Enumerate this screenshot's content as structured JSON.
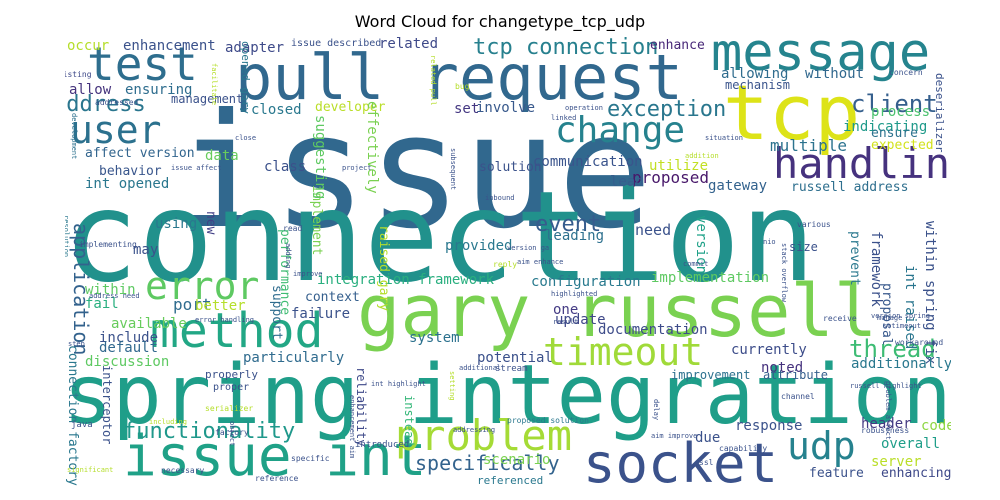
{
  "title": "Word Cloud for changetype_tcp_udp",
  "words": [
    {
      "text": "issue",
      "color": "#31688e"
    },
    {
      "text": "connection",
      "color": "#21918c"
    },
    {
      "text": "spring integration",
      "color": "#1f9e89"
    },
    {
      "text": "pull request",
      "color": "#31688e"
    },
    {
      "text": "gary russell",
      "color": "#7ad151"
    },
    {
      "text": "tcp",
      "color": "#dde318"
    },
    {
      "text": "message",
      "color": "#25848e"
    },
    {
      "text": "method",
      "color": "#22a785"
    },
    {
      "text": "issue int",
      "color": "#1fa187"
    },
    {
      "text": "socket",
      "color": "#3b528b"
    },
    {
      "text": "handling",
      "color": "#46327e"
    },
    {
      "text": "problem",
      "color": "#a5db36"
    },
    {
      "text": "test",
      "color": "#2e6e8e"
    },
    {
      "text": "user",
      "color": "#2c718e"
    },
    {
      "text": "change",
      "color": "#26828e"
    },
    {
      "text": "error",
      "color": "#5ec962"
    },
    {
      "text": "timeout",
      "color": "#a0da39"
    },
    {
      "text": "udp",
      "color": "#26828e"
    },
    {
      "text": "tcp connection",
      "color": "#27808e"
    },
    {
      "text": "exception",
      "color": "#2a778e"
    },
    {
      "text": "client",
      "color": "#355f8d"
    },
    {
      "text": "thread",
      "color": "#3dbc74"
    },
    {
      "text": "functionality",
      "color": "#1f988b"
    },
    {
      "text": "specifically",
      "color": "#33638d"
    },
    {
      "text": "address",
      "color": "#2a768e"
    },
    {
      "text": "application",
      "color": "#33628d"
    },
    {
      "text": "event",
      "color": "#365c8d"
    },
    {
      "text": "enhancement",
      "color": "#3b528b"
    },
    {
      "text": "occur",
      "color": "#b5de2b"
    },
    {
      "text": "related",
      "color": "#3e4989"
    },
    {
      "text": "adapter",
      "color": "#3e4a89"
    },
    {
      "text": "enhance",
      "color": "#482878"
    },
    {
      "text": "allowing",
      "color": "#2f6c8e"
    },
    {
      "text": "without",
      "color": "#31688e"
    },
    {
      "text": "process",
      "color": "#4ac16d"
    },
    {
      "text": "mechanism",
      "color": "#3a548c"
    },
    {
      "text": "closed",
      "color": "#29788e"
    },
    {
      "text": "developer",
      "color": "#bade28"
    },
    {
      "text": "involve",
      "color": "#38598c"
    },
    {
      "text": "set",
      "color": "#453882"
    },
    {
      "text": "ensuring",
      "color": "#2e6d8e"
    },
    {
      "text": "allow",
      "color": "#45337d"
    },
    {
      "text": "affect version",
      "color": "#32658e"
    },
    {
      "text": "int opened",
      "color": "#2a778e"
    },
    {
      "text": "behavior",
      "color": "#39568c"
    },
    {
      "text": "indicating",
      "color": "#1f9a8a"
    },
    {
      "text": "ensure",
      "color": "#2c728e"
    },
    {
      "text": "expected",
      "color": "#d2e21b"
    },
    {
      "text": "communication",
      "color": "#3a548c"
    },
    {
      "text": "proposed",
      "color": "#48186a"
    },
    {
      "text": "lead",
      "color": "#355e8d"
    },
    {
      "text": "multiple",
      "color": "#2c738e"
    },
    {
      "text": "gateway",
      "color": "#33628d"
    },
    {
      "text": "russell address",
      "color": "#2e6f8e"
    },
    {
      "text": "data",
      "color": "#67cc5c"
    },
    {
      "text": "class",
      "color": "#3b518b"
    },
    {
      "text": "using",
      "color": "#2a788e"
    },
    {
      "text": "new",
      "color": "#424086"
    },
    {
      "text": "may",
      "color": "#3b528b"
    },
    {
      "text": "implement",
      "color": "#7ad151"
    },
    {
      "text": "performance",
      "color": "#3fbc73"
    },
    {
      "text": "leading",
      "color": "#2d708e"
    },
    {
      "text": "provided",
      "color": "#2a788e"
    },
    {
      "text": "need",
      "color": "#3b528b"
    },
    {
      "text": "version",
      "color": "#1fa188"
    },
    {
      "text": "integration framework",
      "color": "#29af7f"
    },
    {
      "text": "configuration",
      "color": "#297a8e"
    },
    {
      "text": "implementation",
      "color": "#5ec962"
    },
    {
      "text": "framework",
      "color": "#3b518b"
    },
    {
      "text": "prevent",
      "color": "#2a788e"
    },
    {
      "text": "proposal",
      "color": "#38598c"
    },
    {
      "text": "int raised",
      "color": "#2a768e"
    },
    {
      "text": "within spring fix",
      "color": "#3b528b"
    },
    {
      "text": "within",
      "color": "#5ec962"
    },
    {
      "text": "port",
      "color": "#2f6c8e"
    },
    {
      "text": "better",
      "color": "#b5de2b"
    },
    {
      "text": "context",
      "color": "#355f8d"
    },
    {
      "text": "failure",
      "color": "#3b528b"
    },
    {
      "text": "one",
      "color": "#443b84"
    },
    {
      "text": "update",
      "color": "#3f4788"
    },
    {
      "text": "documentation",
      "color": "#3e4c8a"
    },
    {
      "text": "fail",
      "color": "#29af7f"
    },
    {
      "text": "available",
      "color": "#67cc5c"
    },
    {
      "text": "include",
      "color": "#3b528b"
    },
    {
      "text": "default",
      "color": "#31688e"
    },
    {
      "text": "discussion",
      "color": "#5ec962"
    },
    {
      "text": "particularly",
      "color": "#2f6b8e"
    },
    {
      "text": "system",
      "color": "#2c718e"
    },
    {
      "text": "potential",
      "color": "#3b518b"
    },
    {
      "text": "currently",
      "color": "#3d4d8a"
    },
    {
      "text": "additionally",
      "color": "#2a788e"
    },
    {
      "text": "noted",
      "color": "#46327e"
    },
    {
      "text": "response",
      "color": "#3b528b"
    },
    {
      "text": "due",
      "color": "#3b528b"
    },
    {
      "text": "header",
      "color": "#443a83"
    },
    {
      "text": "code",
      "color": "#8fd744"
    },
    {
      "text": "overall",
      "color": "#1f9e89"
    },
    {
      "text": "server",
      "color": "#bade28"
    },
    {
      "text": "feature",
      "color": "#3b528b"
    },
    {
      "text": "enhancing",
      "color": "#3e4989"
    },
    {
      "text": "connection factory",
      "color": "#2a788e"
    },
    {
      "text": "interceptor",
      "color": "#3b528b"
    },
    {
      "text": "raised gary",
      "color": "#b5de2b"
    },
    {
      "text": "reliability",
      "color": "#3e4989"
    },
    {
      "text": "instead",
      "color": "#35b779"
    },
    {
      "text": "scenario",
      "color": "#7ad151"
    },
    {
      "text": "support",
      "color": "#2f6c8e"
    },
    {
      "text": "effectively",
      "color": "#7ad151"
    },
    {
      "text": "suggesting",
      "color": "#5ec962"
    },
    {
      "text": "solution",
      "color": "#3b528b"
    },
    {
      "text": "utilize",
      "color": "#c2df23"
    },
    {
      "text": "improvement",
      "color": "#2c718e"
    },
    {
      "text": "attribute",
      "color": "#355f8d"
    },
    {
      "text": "opened gary",
      "color": "#2a788e"
    },
    {
      "text": "management",
      "color": "#3b528b"
    },
    {
      "text": "deserializer",
      "color": "#3b528b"
    },
    {
      "text": "addressed",
      "color": "#3b528b"
    },
    {
      "text": "issue described",
      "color": "#3b528b"
    },
    {
      "text": "referenced",
      "color": "#2a788e"
    },
    {
      "text": "existing",
      "color": "#3e4989"
    },
    {
      "text": "development",
      "color": "#2c718e"
    },
    {
      "text": "workaround",
      "color": "#3b528b"
    },
    {
      "text": "concern",
      "color": "#3b528b"
    },
    {
      "text": "stream",
      "color": "#3b528b"
    },
    {
      "text": "proper",
      "color": "#3b528b"
    },
    {
      "text": "properly",
      "color": "#3b528b"
    },
    {
      "text": "size",
      "color": "#3b528b"
    },
    {
      "text": "java",
      "color": "#3b528b"
    },
    {
      "text": "factory",
      "color": "#3b528b"
    },
    {
      "text": "delay",
      "color": "#3b528b"
    },
    {
      "text": "capability",
      "color": "#3b528b"
    },
    {
      "text": "robustness",
      "color": "#3b528b"
    },
    {
      "text": "addressing",
      "color": "#3b528b"
    },
    {
      "text": "proposed solution",
      "color": "#2a788e"
    },
    {
      "text": "implementing",
      "color": "#3b528b"
    },
    {
      "text": "resolution",
      "color": "#2a788e"
    },
    {
      "text": "aim enhance",
      "color": "#3b528b"
    },
    {
      "text": "error handling",
      "color": "#3b528b"
    },
    {
      "text": "receive",
      "color": "#3b528b"
    },
    {
      "text": "channel",
      "color": "#3b528b"
    },
    {
      "text": "operation",
      "color": "#3b528b"
    },
    {
      "text": "linked",
      "color": "#3b528b"
    },
    {
      "text": "situation",
      "color": "#3b528b"
    },
    {
      "text": "addition",
      "color": "#b5de2b"
    },
    {
      "text": "read",
      "color": "#3b528b"
    },
    {
      "text": "inbound",
      "color": "#3b528b"
    },
    {
      "text": "improve",
      "color": "#3b528b"
    },
    {
      "text": "commit",
      "color": "#3b528b"
    },
    {
      "text": "various",
      "color": "#3b528b"
    },
    {
      "text": "manage",
      "color": "#3b528b"
    },
    {
      "text": "highlighted",
      "color": "#3b528b"
    },
    {
      "text": "result",
      "color": "#3b528b"
    },
    {
      "text": "reference",
      "color": "#3b528b"
    },
    {
      "text": "specific",
      "color": "#3b528b"
    },
    {
      "text": "necessary",
      "color": "#3b528b"
    },
    {
      "text": "including",
      "color": "#b5de2b"
    },
    {
      "text": "serializer",
      "color": "#b5de2b"
    },
    {
      "text": "introduced",
      "color": "#3b528b"
    },
    {
      "text": "int highlight",
      "color": "#3b528b"
    },
    {
      "text": "stack overflow",
      "color": "#3b528b"
    },
    {
      "text": "version ga",
      "color": "#3b528b"
    },
    {
      "text": "aim improve",
      "color": "#3b528b"
    },
    {
      "text": "significant",
      "color": "#b5de2b"
    },
    {
      "text": "project",
      "color": "#3b528b"
    },
    {
      "text": "close",
      "color": "#3b528b"
    },
    {
      "text": "reply",
      "color": "#b5de2b"
    },
    {
      "text": "adding",
      "color": "#3b528b"
    },
    {
      "text": "step",
      "color": "#3b528b"
    },
    {
      "text": "address need",
      "color": "#3b528b"
    },
    {
      "text": "additional",
      "color": "#3b528b"
    },
    {
      "text": "object",
      "color": "#3b528b"
    },
    {
      "text": "setting",
      "color": "#b5de2b"
    },
    {
      "text": "ssl",
      "color": "#3b528b"
    },
    {
      "text": "nio",
      "color": "#3b528b"
    },
    {
      "text": "sotimeout",
      "color": "#3b528b"
    },
    {
      "text": "facilitate",
      "color": "#b5de2b"
    },
    {
      "text": "issue affect",
      "color": "#3b528b"
    },
    {
      "text": "enhancement aim",
      "color": "#3b528b"
    },
    {
      "text": "version spring",
      "color": "#3b528b"
    },
    {
      "text": "problem affect",
      "color": "#3b528b"
    },
    {
      "text": "tcpoutboundgateway",
      "color": "#3b528b"
    },
    {
      "text": "russell highlight",
      "color": "#3b528b"
    },
    {
      "text": "subsequent",
      "color": "#3b528b"
    },
    {
      "text": "related pull",
      "color": "#b5de2b"
    },
    {
      "text": "bug",
      "color": "#b5de2b"
    }
  ]
}
